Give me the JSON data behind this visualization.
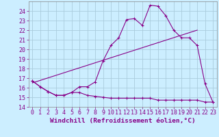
{
  "background_color": "#cceeff",
  "grid_color": "#aaccdd",
  "line_color": "#880088",
  "xlim": [
    -0.5,
    23.5
  ],
  "ylim": [
    14,
    25
  ],
  "xlabel": "Windchill (Refroidissement éolien,°C)",
  "xlabel_fontsize": 6.8,
  "xticks": [
    0,
    1,
    2,
    3,
    4,
    5,
    6,
    7,
    8,
    9,
    10,
    11,
    12,
    13,
    14,
    15,
    16,
    17,
    18,
    19,
    20,
    21,
    22,
    23
  ],
  "yticks": [
    14,
    15,
    16,
    17,
    18,
    19,
    20,
    21,
    22,
    23,
    24
  ],
  "tick_fontsize": 6.0,
  "line1_x": [
    0,
    1,
    2,
    3,
    4,
    5,
    6,
    7,
    8,
    9,
    10,
    11,
    12,
    13,
    14,
    15,
    16,
    17,
    18,
    19,
    20,
    21,
    22,
    23
  ],
  "line1_y": [
    16.7,
    16.1,
    15.6,
    15.2,
    15.2,
    15.5,
    16.1,
    16.1,
    16.6,
    18.8,
    20.4,
    21.2,
    23.1,
    23.2,
    22.5,
    24.6,
    24.5,
    23.5,
    22.0,
    21.2,
    21.2,
    20.4,
    16.4,
    14.5
  ],
  "line2_x": [
    0,
    1,
    2,
    3,
    4,
    5,
    6,
    7,
    8,
    9,
    10,
    11,
    12,
    13,
    14,
    15,
    16,
    17,
    18,
    19,
    20,
    21,
    22,
    23
  ],
  "line2_y": [
    16.7,
    16.1,
    15.6,
    15.2,
    15.2,
    15.5,
    15.5,
    15.2,
    15.1,
    15.0,
    14.9,
    14.9,
    14.9,
    14.9,
    14.9,
    14.9,
    14.7,
    14.7,
    14.7,
    14.7,
    14.7,
    14.7,
    14.5,
    14.5
  ],
  "line3_x": [
    0,
    21
  ],
  "line3_y": [
    16.5,
    22.0
  ]
}
